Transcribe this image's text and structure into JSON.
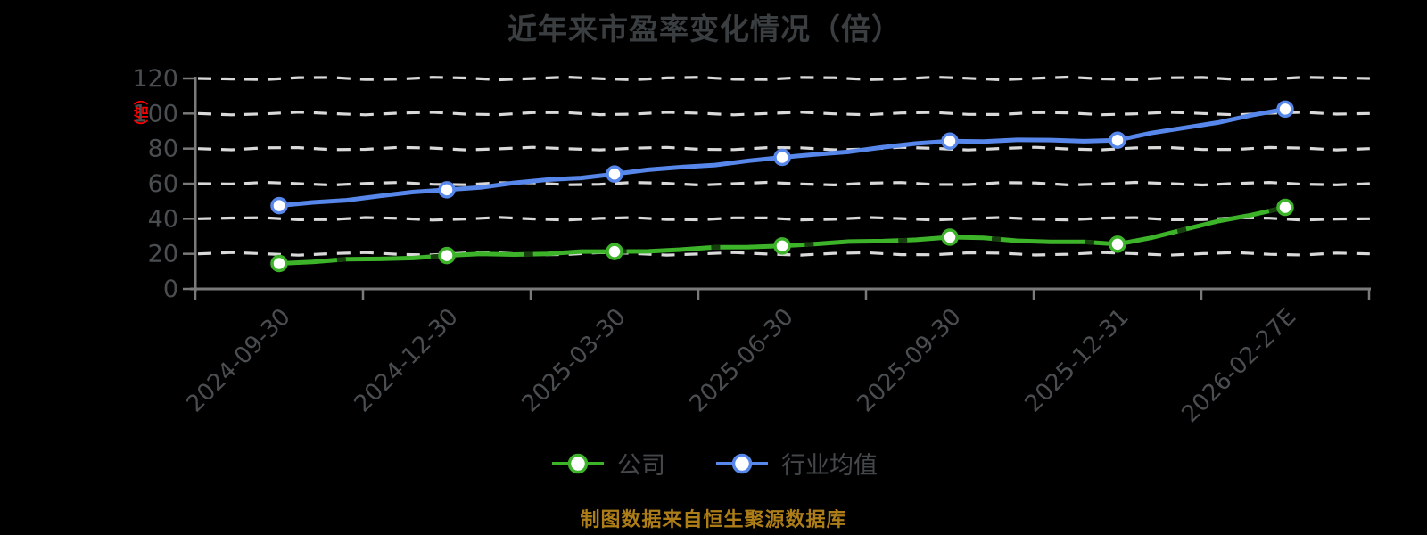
{
  "title": "近年来市盈率变化情况（倍）",
  "y_axis": {
    "unit_label": "（倍）",
    "ticks": [
      0,
      20,
      40,
      60,
      80,
      100,
      120
    ]
  },
  "legend": {
    "items": [
      {
        "label": "公司",
        "color": "#3db32a"
      },
      {
        "label": "行业均值",
        "color": "#5787ea"
      }
    ]
  },
  "footer": {
    "source_note": "制图数据来自恒生聚源数据库"
  },
  "colors": {
    "background": "#000000",
    "title_text": "#3a3e41",
    "axis_label_text": "#4b4e51",
    "axis_line": "#7a7a7a",
    "gridline": "#d9d9d9",
    "company_line": "#3db32a",
    "company_sketch_overlay": "#173f0e",
    "industry_line": "#5787ea",
    "unit_label_text": "#fe0000",
    "footer_text": "#ad7d18",
    "marker_fill": "#ffffff"
  },
  "chart_data": {
    "type": "line",
    "title": "近年来市盈率变化情况（倍）",
    "categories": [
      "2024-09-30",
      "2024-12-30",
      "2025-03-30",
      "2025-06-30",
      "2025-09-30",
      "2025-12-31",
      "2026-02-27E"
    ],
    "series": [
      {
        "name": "公司",
        "color": "#3db32a",
        "marker": "circle-white-fill",
        "values": [
          14.5,
          19,
          21.3,
          24.5,
          29.5,
          25.5,
          46.5
        ]
      },
      {
        "name": "行业均值",
        "color": "#5787ea",
        "marker": "circle-white-fill",
        "values": [
          47.5,
          56.5,
          65.5,
          75,
          84.3,
          84.8,
          102.5
        ]
      }
    ],
    "xlabel": "",
    "ylabel": "（倍）",
    "ylim": [
      0,
      120
    ],
    "yticks": [
      0,
      20,
      40,
      60,
      80,
      100,
      120
    ],
    "grid": {
      "horizontal": true,
      "style": "dashed",
      "color": "#d9d9d9"
    },
    "legend_position": "bottom-center",
    "render_style": "hand-drawn sketch lines on black background, x labels rotated 45deg"
  }
}
